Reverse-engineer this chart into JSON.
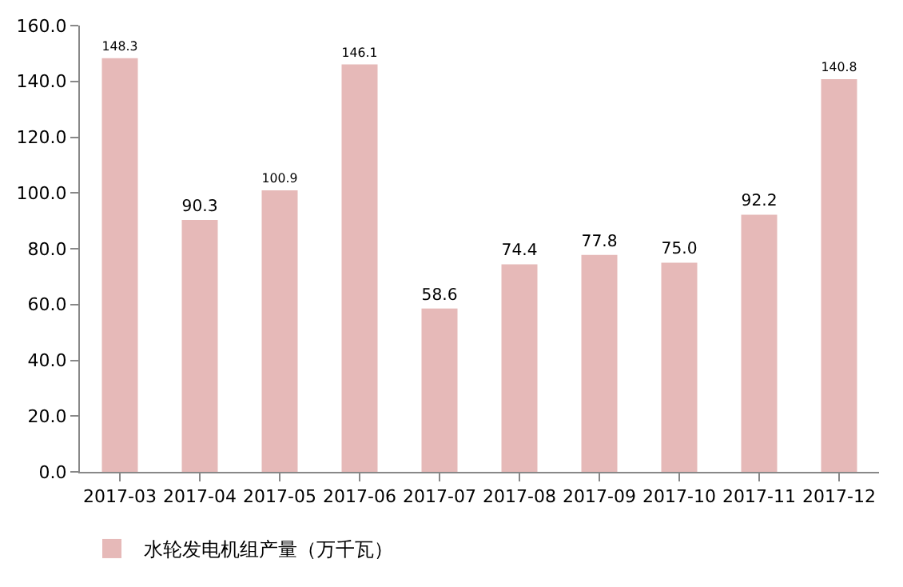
{
  "chart_data": {
    "type": "bar",
    "categories": [
      "2017-03",
      "2017-04",
      "2017-05",
      "2017-06",
      "2017-07",
      "2017-08",
      "2017-09",
      "2017-10",
      "2017-11",
      "2017-12"
    ],
    "series": [
      {
        "name": "水轮发电机组产量（万千瓦）",
        "color": "#e6b9b8",
        "values": [
          148.3,
          90.3,
          100.9,
          146.1,
          58.6,
          74.4,
          77.8,
          75.0,
          92.2,
          140.8
        ],
        "value_labels": [
          "148.3",
          "90.3",
          "100.9",
          "146.1",
          "58.6",
          "74.4",
          "77.8",
          "75.0",
          "92.2",
          "140.8"
        ]
      }
    ],
    "ylim": [
      0,
      160
    ],
    "yticks": [
      {
        "value": 0,
        "label": "0.0"
      },
      {
        "value": 20,
        "label": "20.0"
      },
      {
        "value": 40,
        "label": "40.0"
      },
      {
        "value": 60,
        "label": "60.0"
      },
      {
        "value": 80,
        "label": "80.0"
      },
      {
        "value": 100,
        "label": "100.0"
      },
      {
        "value": 120,
        "label": "120.0"
      },
      {
        "value": 140,
        "label": "140.0"
      },
      {
        "value": 160,
        "label": "160.0"
      }
    ],
    "grid": false,
    "legend": "bottom left"
  }
}
